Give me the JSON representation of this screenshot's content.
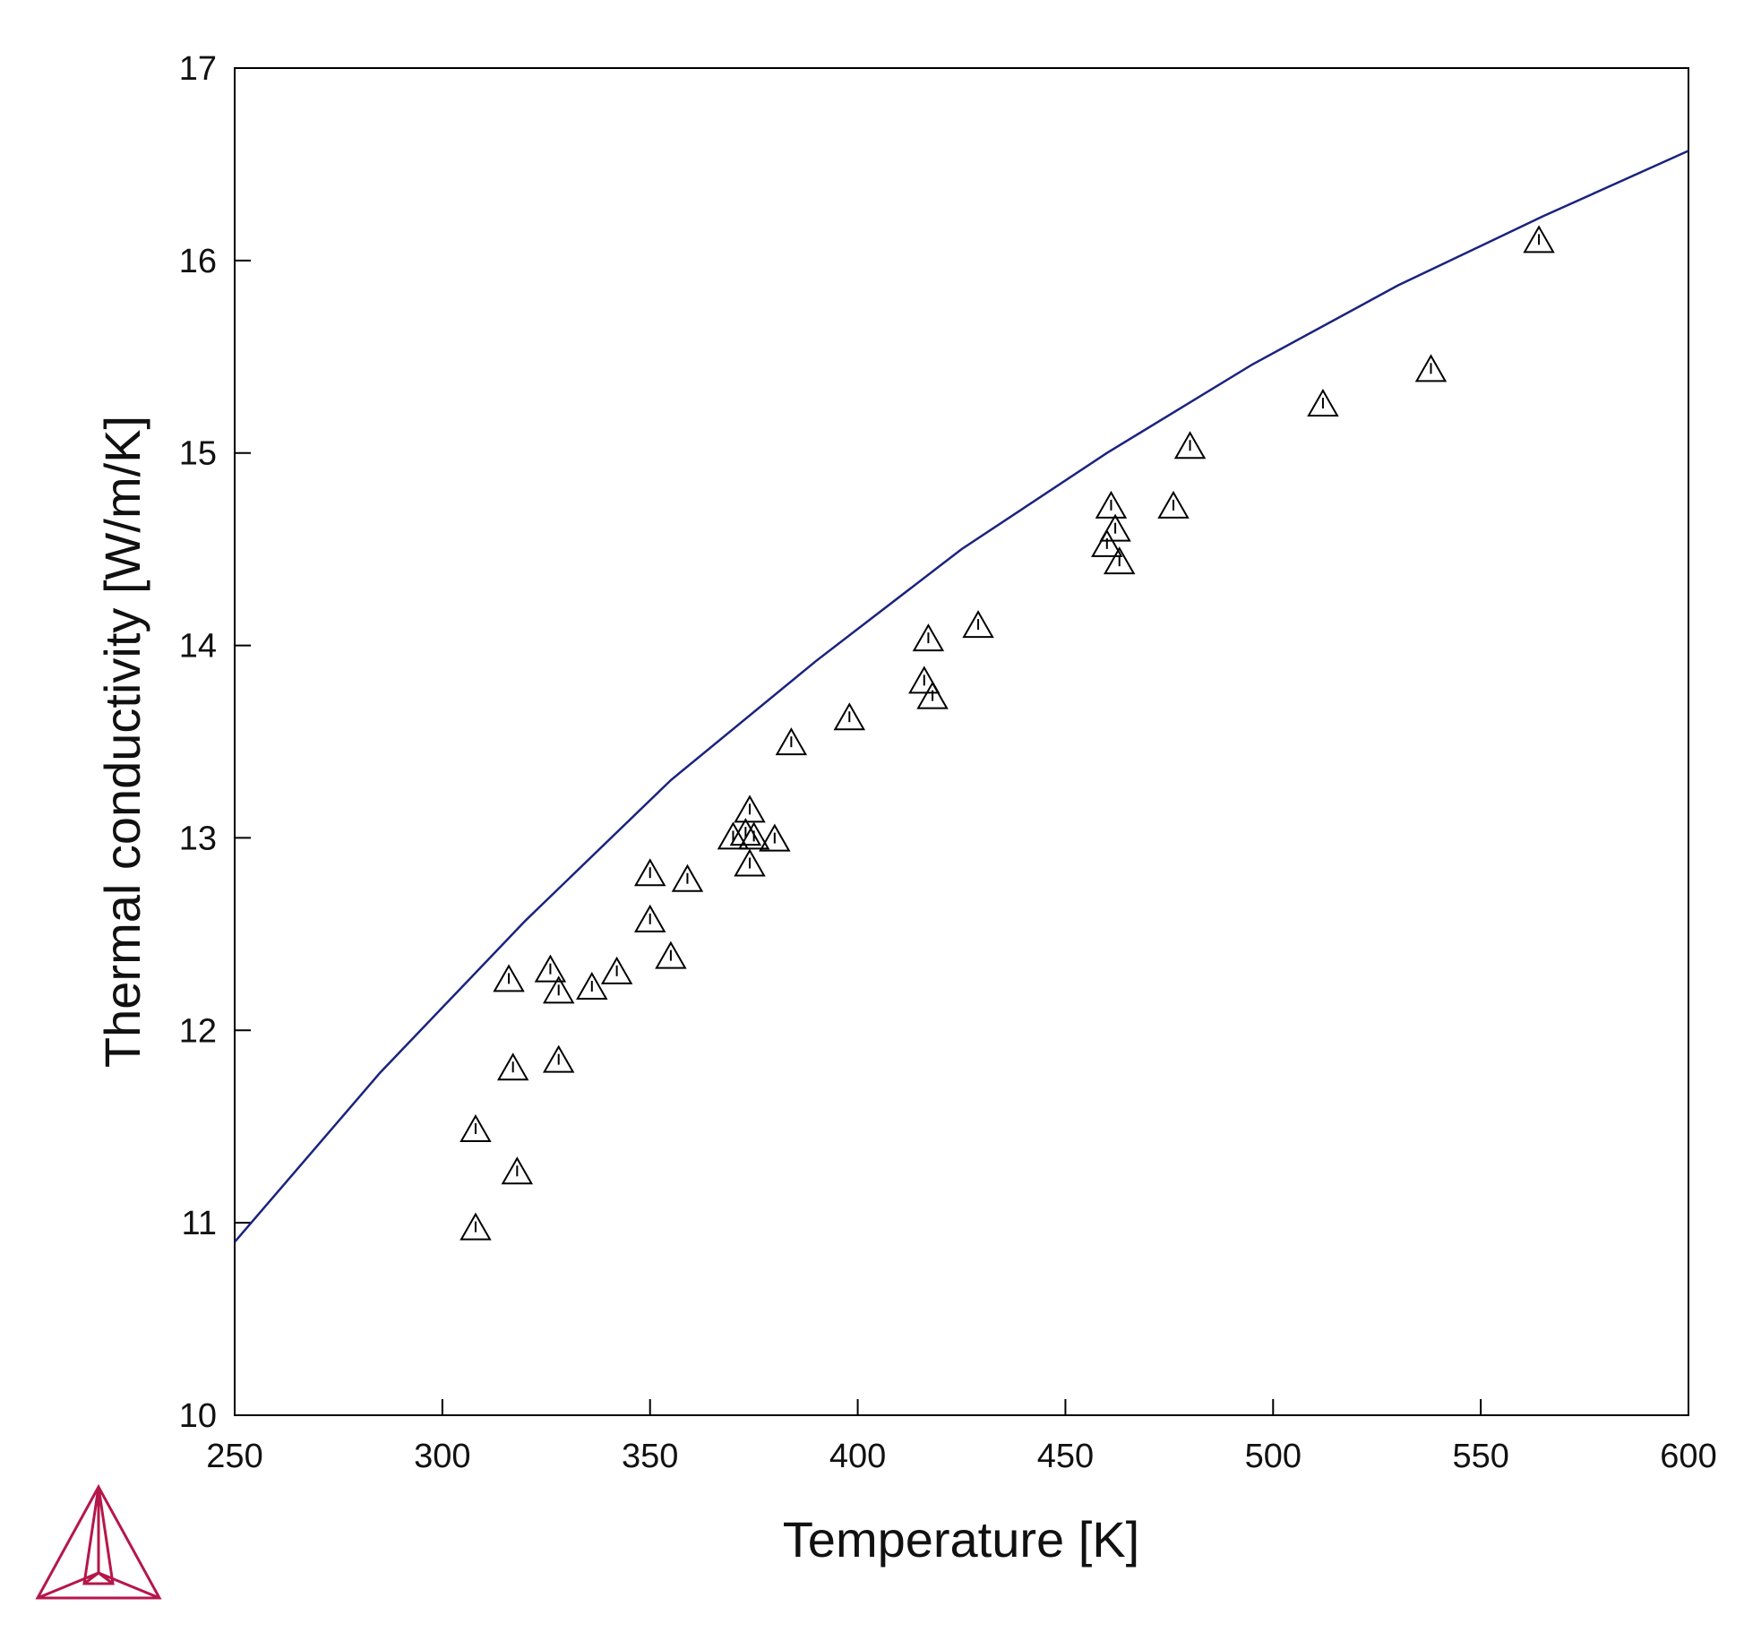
{
  "chart_data": {
    "type": "scatter",
    "title": "",
    "xlabel": "Temperature [K]",
    "ylabel": "Thermal conductivity [W/m/K]",
    "xlim": [
      250,
      600
    ],
    "ylim": [
      10,
      17
    ],
    "xticks": [
      250,
      300,
      350,
      400,
      450,
      500,
      550,
      600
    ],
    "yticks": [
      10,
      11,
      12,
      13,
      14,
      15,
      16,
      17
    ],
    "grid": false,
    "legend": "none",
    "series": [
      {
        "kind": "line",
        "color": "#1a237e",
        "x": [
          250,
          285,
          320,
          355,
          390,
          425,
          460,
          495,
          530,
          565,
          600
        ],
        "y": [
          10.9,
          11.78,
          12.57,
          13.3,
          13.92,
          14.5,
          15.0,
          15.46,
          15.87,
          16.23,
          16.57
        ]
      },
      {
        "kind": "marker",
        "marker": "triangle",
        "color": "#000000",
        "x": [
          308,
          308,
          316,
          317,
          318,
          326,
          328,
          328,
          336,
          342,
          350,
          350,
          355,
          359,
          370,
          373,
          374,
          374,
          375,
          380,
          384,
          398,
          416,
          417,
          418,
          429,
          460,
          461,
          462,
          463,
          476,
          480,
          512,
          538,
          564
        ],
        "y": [
          11.48,
          10.97,
          12.26,
          11.8,
          11.26,
          12.31,
          11.84,
          12.2,
          12.22,
          12.3,
          12.81,
          12.57,
          12.38,
          12.78,
          13.0,
          13.02,
          13.14,
          12.86,
          13.0,
          12.99,
          13.49,
          13.62,
          13.81,
          14.03,
          13.73,
          14.1,
          14.52,
          14.72,
          14.6,
          14.43,
          14.72,
          15.03,
          15.25,
          15.43,
          16.1
        ]
      }
    ]
  },
  "logo": {
    "name": "thermo-calc-logo-icon",
    "color": "#b5174b"
  }
}
